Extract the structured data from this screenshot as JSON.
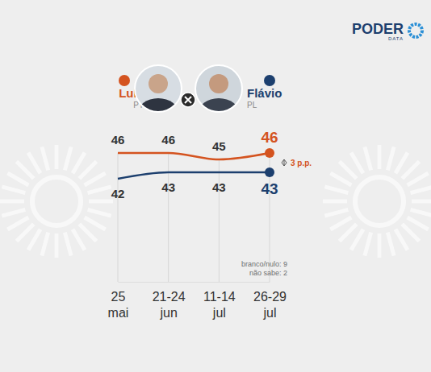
{
  "chart_data": {
    "type": "line",
    "brand": "PODER",
    "brand_sub": "DATA",
    "categories": [
      "25 mai",
      "21-24 jun",
      "11-14 jul",
      "26-29 jul"
    ],
    "series": [
      {
        "name": "Lula",
        "party": "PT",
        "color": "#d4531f",
        "values": [
          46,
          46,
          45,
          46
        ]
      },
      {
        "name": "Flávio",
        "party": "PL",
        "color": "#1c3f6e",
        "values": [
          42,
          43,
          43,
          43
        ]
      }
    ],
    "annotations": [
      "3 p.p.",
      "branco/nulo: 9",
      "não sabe: 2"
    ],
    "ylim": [
      26,
      51
    ],
    "data_labels": true,
    "tick_labels": "x",
    "legend": "top"
  }
}
